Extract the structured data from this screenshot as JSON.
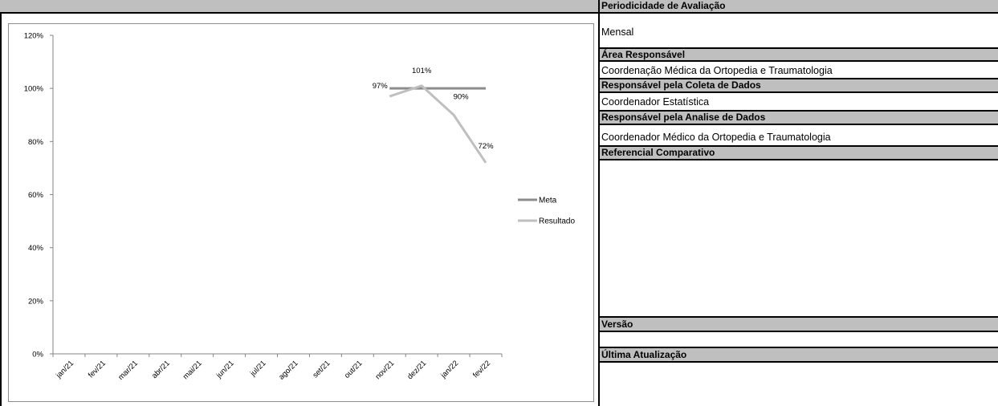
{
  "chart_data": {
    "type": "line",
    "categories": [
      "jan/21",
      "fev/21",
      "mar/21",
      "abr/21",
      "mai/21",
      "jun/21",
      "jul/21",
      "ago/21",
      "set/21",
      "out/21",
      "nov/21",
      "dez/21",
      "jan/22",
      "fev/22"
    ],
    "series": [
      {
        "name": "Meta",
        "values": [
          null,
          null,
          null,
          null,
          null,
          null,
          null,
          null,
          null,
          null,
          100,
          100,
          100,
          100
        ],
        "color": "#8c8c8c"
      },
      {
        "name": "Resultado",
        "values": [
          null,
          null,
          null,
          null,
          null,
          null,
          null,
          null,
          null,
          null,
          97,
          101,
          90,
          72
        ],
        "color": "#bfbfbf",
        "labels": [
          null,
          null,
          null,
          null,
          null,
          null,
          null,
          null,
          null,
          null,
          "97%",
          "101%",
          "90%",
          "72%"
        ]
      }
    ],
    "yticks": [
      "0%",
      "20%",
      "40%",
      "60%",
      "80%",
      "100%",
      "120%"
    ],
    "ylim": [
      0,
      120
    ],
    "legend_position": "right",
    "grid": false
  },
  "panel": {
    "periodicidade_label": "Periodicidade de Avaliação",
    "periodicidade_value": "Mensal",
    "area_label": "Área Responsável",
    "area_value": "Coordenação Médica da Ortopedia e Traumatologia",
    "coleta_label": "Responsável pela Coleta de Dados",
    "coleta_value": "Coordenador Estatística",
    "analise_label": "Responsável pela Analise de Dados",
    "analise_value": "Coordenador Médico da Ortopedia e Traumatologia",
    "referencial_label": "Referencial Comparativo",
    "versao_label": "Versão",
    "atualizacao_label": "Última Atualização"
  }
}
